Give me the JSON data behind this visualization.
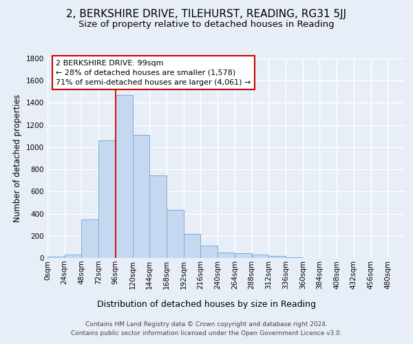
{
  "title": "2, BERKSHIRE DRIVE, TILEHURST, READING, RG31 5JJ",
  "subtitle": "Size of property relative to detached houses in Reading",
  "xlabel": "Distribution of detached houses by size in Reading",
  "ylabel": "Number of detached properties",
  "bin_labels": [
    "0sqm",
    "24sqm",
    "48sqm",
    "72sqm",
    "96sqm",
    "120sqm",
    "144sqm",
    "168sqm",
    "192sqm",
    "216sqm",
    "240sqm",
    "264sqm",
    "288sqm",
    "312sqm",
    "336sqm",
    "360sqm",
    "384sqm",
    "408sqm",
    "432sqm",
    "456sqm",
    "480sqm"
  ],
  "bar_heights": [
    10,
    28,
    350,
    1060,
    1470,
    1110,
    745,
    435,
    220,
    110,
    50,
    45,
    30,
    20,
    5,
    2,
    1,
    0,
    0,
    0,
    0
  ],
  "bar_color": "#c5d8f0",
  "bar_edge_color": "#7aadd4",
  "vline_bin": 4,
  "annotation_text": "2 BERKSHIRE DRIVE: 99sqm\n← 28% of detached houses are smaller (1,578)\n71% of semi-detached houses are larger (4,061) →",
  "annotation_box_facecolor": "#ffffff",
  "annotation_box_edgecolor": "#cc0000",
  "vline_color": "#cc0000",
  "ylim_max": 1800,
  "yticks": [
    0,
    200,
    400,
    600,
    800,
    1000,
    1200,
    1400,
    1600,
    1800
  ],
  "footer1": "Contains HM Land Registry data © Crown copyright and database right 2024.",
  "footer2": "Contains public sector information licensed under the Open Government Licence v3.0.",
  "bg_color": "#e8eef8",
  "grid_color": "#ffffff",
  "title_fontsize": 11,
  "subtitle_fontsize": 9.5,
  "ylabel_fontsize": 8.5,
  "xlabel_fontsize": 9,
  "tick_fontsize": 7.5,
  "footer_fontsize": 6.5
}
